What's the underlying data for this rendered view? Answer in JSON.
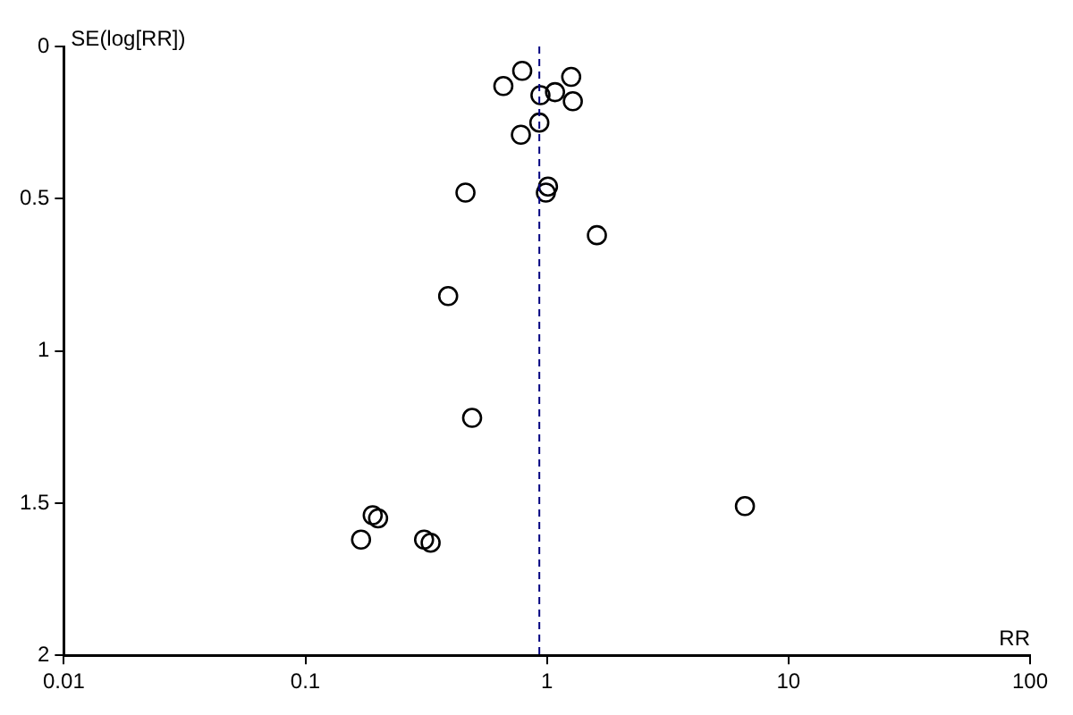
{
  "chart_data": {
    "type": "scatter",
    "xlabel": "RR",
    "ylabel": "SE(log[RR])",
    "log": "x",
    "xlim": [
      0.01,
      100
    ],
    "xticks": [
      0.01,
      0.1,
      1,
      10,
      100
    ],
    "ylim": [
      2,
      0
    ],
    "yticks": [
      0,
      0.5,
      1,
      1.5,
      2
    ],
    "grid": false,
    "legend": false,
    "marker": "circle",
    "series": [
      {
        "color": "#000000",
        "x": [
          0.79,
          0.66,
          1.26,
          0.94,
          1.08,
          1.28,
          0.93,
          0.78,
          0.46,
          1.01,
          0.99,
          1.61,
          0.39,
          0.49,
          6.6,
          0.19,
          0.2,
          0.17,
          0.31,
          0.33,
          null
        ],
        "values": [
          0.08,
          0.13,
          0.1,
          0.16,
          0.15,
          0.18,
          0.25,
          0.29,
          0.48,
          0.46,
          0.48,
          0.62,
          0.82,
          1.22,
          1.51,
          1.54,
          1.55,
          1.62,
          1.62,
          1.63,
          null
        ]
      }
    ],
    "ref_lines": [
      {
        "axis": "x",
        "value": 0.93,
        "color": "#000080",
        "line_style": "dashed"
      }
    ]
  }
}
